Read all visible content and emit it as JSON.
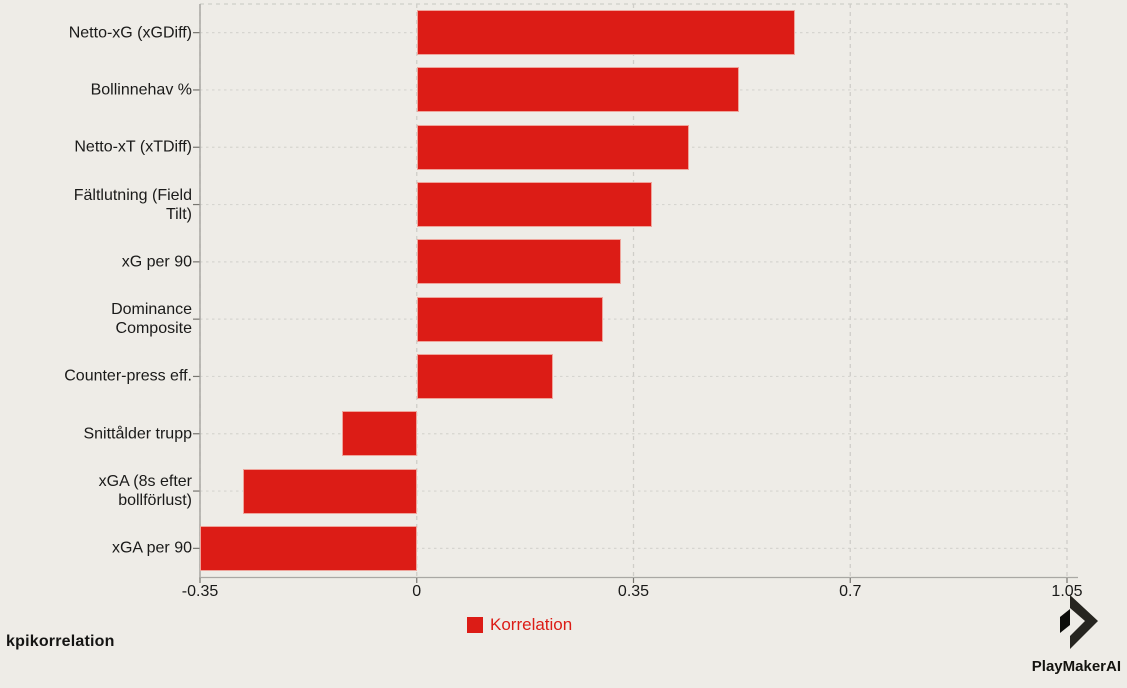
{
  "chart_data": {
    "type": "bar",
    "orientation": "horizontal",
    "categories": [
      "Netto-xG (xGDiff)",
      "Bollinnehav %",
      "Netto-xT (xTDiff)",
      "Fältlutning (Field Tilt)",
      "xG per 90",
      "Dominance Composite",
      "Counter-press eff.",
      "Snittålder trupp",
      "xGA (8s efter bollförlust)",
      "xGA per 90"
    ],
    "category_lines": [
      [
        "Netto-xG (xGDiff)"
      ],
      [
        "Bollinnehav %"
      ],
      [
        "Netto-xT (xTDiff)"
      ],
      [
        "Fältlutning (Field",
        "Tilt)"
      ],
      [
        "xG per 90"
      ],
      [
        "Dominance",
        "Composite"
      ],
      [
        "Counter-press eff."
      ],
      [
        "Snittålder trupp"
      ],
      [
        "xGA (8s efter",
        "bollförlust)"
      ],
      [
        "xGA per 90"
      ]
    ],
    "series": [
      {
        "name": "Korrelation",
        "values": [
          0.61,
          0.52,
          0.44,
          0.38,
          0.33,
          0.3,
          0.22,
          -0.12,
          -0.28,
          -0.35
        ]
      }
    ],
    "xlim": [
      -0.35,
      1.05
    ],
    "x_ticks": [
      -0.35,
      0,
      0.35,
      0.7,
      1.05
    ],
    "x_tick_labels": [
      "-0.35",
      "0",
      "0.35",
      "0.7",
      "1.05"
    ],
    "xlabel": "",
    "ylabel": "",
    "title": "",
    "grid": {
      "vertical": "dashed",
      "horizontal": "dotted",
      "top_border": "dashed"
    },
    "legend_position": "bottom-center",
    "bar_color": "#dc1c16",
    "background_color": "#eeece7",
    "grid_color_vertical": "#cfcec9",
    "grid_color_horizontal": "#d6d5d0",
    "axis_color": "#a9a8a4",
    "tick_color": "#76756f"
  },
  "legend": {
    "label": "Korrelation",
    "swatch_color": "#dc1c16"
  },
  "footer": {
    "caption": "kpikorrelation",
    "brand": "PlayMakerAI"
  },
  "icons": {
    "brand_logo": "playmaker-chevron"
  }
}
